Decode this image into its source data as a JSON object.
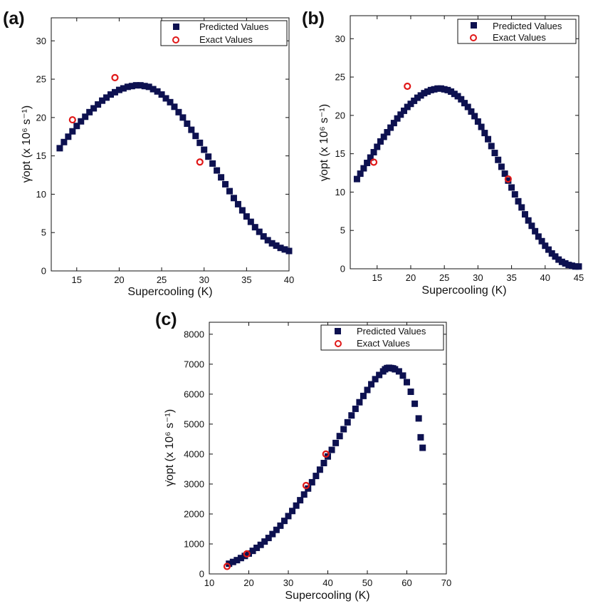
{
  "colors": {
    "predicted": "#0d1150",
    "exact": "#e01818",
    "axis": "#111111",
    "background": "#ffffff"
  },
  "chart_data": [
    {
      "panel": "(a)",
      "type": "scatter",
      "xlabel": "Supercooling (K)",
      "ylabel": "γ̇opt (x 10⁶ s⁻¹)",
      "xlim": [
        12,
        40
      ],
      "ylim": [
        0,
        33
      ],
      "xticks": [
        15,
        20,
        25,
        30,
        35,
        40
      ],
      "yticks": [
        0,
        5,
        10,
        15,
        20,
        25,
        30
      ],
      "legend": {
        "position": "top-right",
        "entries": [
          "Predicted Values",
          "Exact Values"
        ]
      },
      "series": [
        {
          "name": "Predicted Values",
          "marker": "square",
          "x": [
            13,
            13.5,
            14,
            14.5,
            15,
            15.5,
            16,
            16.5,
            17,
            17.5,
            18,
            18.5,
            19,
            19.5,
            20,
            20.5,
            21,
            21.5,
            22,
            22.5,
            23,
            23.5,
            24,
            24.5,
            25,
            25.5,
            26,
            26.5,
            27,
            27.5,
            28,
            28.5,
            29,
            29.5,
            30,
            30.5,
            31,
            31.5,
            32,
            32.5,
            33,
            33.5,
            34,
            34.5,
            35,
            35.5,
            36,
            36.5,
            37,
            37.5,
            38,
            38.5,
            39,
            39.5,
            40
          ],
          "y": [
            16.0,
            16.8,
            17.5,
            18.2,
            18.9,
            19.5,
            20.1,
            20.7,
            21.2,
            21.7,
            22.2,
            22.6,
            23.0,
            23.3,
            23.6,
            23.8,
            24.0,
            24.1,
            24.2,
            24.2,
            24.1,
            24.0,
            23.7,
            23.4,
            23.0,
            22.5,
            22.0,
            21.4,
            20.7,
            20.0,
            19.2,
            18.4,
            17.6,
            16.7,
            15.8,
            14.9,
            14.0,
            13.1,
            12.2,
            11.3,
            10.4,
            9.5,
            8.7,
            7.9,
            7.1,
            6.4,
            5.7,
            5.1,
            4.5,
            4.0,
            3.6,
            3.3,
            3.0,
            2.8,
            2.6
          ]
        },
        {
          "name": "Exact Values",
          "marker": "circle",
          "x": [
            14.5,
            19.5,
            29.5
          ],
          "y": [
            19.7,
            25.2,
            14.2
          ]
        }
      ]
    },
    {
      "panel": "(b)",
      "type": "scatter",
      "xlabel": "Supercooling (K)",
      "ylabel": "γ̇opt (x 10⁶ s⁻¹)",
      "xlim": [
        11,
        45
      ],
      "ylim": [
        0,
        33
      ],
      "xticks": [
        15,
        20,
        25,
        30,
        35,
        40,
        45
      ],
      "yticks": [
        0,
        5,
        10,
        15,
        20,
        25,
        30
      ],
      "legend": {
        "position": "top-right",
        "entries": [
          "Predicted Values",
          "Exact Values"
        ]
      },
      "series": [
        {
          "name": "Predicted Values",
          "marker": "square",
          "x": [
            12,
            12.5,
            13,
            13.5,
            14,
            14.5,
            15,
            15.5,
            16,
            16.5,
            17,
            17.5,
            18,
            18.5,
            19,
            19.5,
            20,
            20.5,
            21,
            21.5,
            22,
            22.5,
            23,
            23.5,
            24,
            24.5,
            25,
            25.5,
            26,
            26.5,
            27,
            27.5,
            28,
            28.5,
            29,
            29.5,
            30,
            30.5,
            31,
            31.5,
            32,
            32.5,
            33,
            33.5,
            34,
            34.5,
            35,
            35.5,
            36,
            36.5,
            37,
            37.5,
            38,
            38.5,
            39,
            39.5,
            40,
            40.5,
            41,
            41.5,
            42,
            42.5,
            43,
            43.5,
            44,
            44.5,
            45
          ],
          "y": [
            11.7,
            12.4,
            13.1,
            13.8,
            14.5,
            15.2,
            15.9,
            16.6,
            17.2,
            17.8,
            18.4,
            19.0,
            19.6,
            20.1,
            20.6,
            21.1,
            21.5,
            21.9,
            22.3,
            22.6,
            22.9,
            23.1,
            23.3,
            23.4,
            23.5,
            23.5,
            23.4,
            23.3,
            23.1,
            22.8,
            22.5,
            22.1,
            21.6,
            21.1,
            20.5,
            19.9,
            19.2,
            18.5,
            17.7,
            16.9,
            16.0,
            15.1,
            14.2,
            13.3,
            12.4,
            11.5,
            10.6,
            9.7,
            8.8,
            8.0,
            7.1,
            6.3,
            5.6,
            4.9,
            4.2,
            3.6,
            3.0,
            2.5,
            2.0,
            1.6,
            1.2,
            0.9,
            0.7,
            0.5,
            0.4,
            0.3,
            0.3
          ]
        },
        {
          "name": "Exact Values",
          "marker": "circle",
          "x": [
            14.5,
            19.5,
            34.5
          ],
          "y": [
            13.9,
            23.8,
            11.7
          ]
        }
      ]
    },
    {
      "panel": "(c)",
      "type": "scatter",
      "xlabel": "Supercooling (K)",
      "ylabel": "γ̇opt (x 10⁶ s⁻¹)",
      "xlim": [
        10,
        70
      ],
      "ylim": [
        0,
        8400
      ],
      "xticks": [
        10,
        20,
        30,
        40,
        50,
        60,
        70
      ],
      "yticks": [
        0,
        1000,
        2000,
        3000,
        4000,
        5000,
        6000,
        7000,
        8000
      ],
      "legend": {
        "position": "top-right",
        "entries": [
          "Predicted Values",
          "Exact Values"
        ]
      },
      "series": [
        {
          "name": "Predicted Values",
          "marker": "square",
          "x": [
            15,
            16,
            17,
            18,
            19,
            20,
            21,
            22,
            23,
            24,
            25,
            26,
            27,
            28,
            29,
            30,
            31,
            32,
            33,
            34,
            35,
            36,
            37,
            38,
            39,
            40,
            41,
            42,
            43,
            44,
            45,
            46,
            47,
            48,
            49,
            50,
            51,
            52,
            53,
            54,
            54.5,
            55,
            55.5,
            56,
            56.5,
            57,
            58,
            59,
            60,
            61,
            62,
            63,
            63.5,
            64
          ],
          "y": [
            340,
            400,
            460,
            530,
            600,
            680,
            770,
            870,
            970,
            1080,
            1200,
            1330,
            1470,
            1610,
            1770,
            1930,
            2100,
            2280,
            2460,
            2650,
            2850,
            3060,
            3270,
            3480,
            3700,
            3920,
            4140,
            4370,
            4600,
            4830,
            5060,
            5290,
            5510,
            5730,
            5940,
            6140,
            6330,
            6500,
            6640,
            6760,
            6830,
            6870,
            6880,
            6870,
            6860,
            6830,
            6760,
            6620,
            6400,
            6080,
            5680,
            5190,
            4560,
            4210
          ]
        },
        {
          "name": "Exact Values",
          "marker": "circle",
          "x": [
            14.5,
            19.5,
            34.5,
            39.5
          ],
          "y": [
            250,
            670,
            2950,
            4000
          ]
        }
      ]
    }
  ]
}
